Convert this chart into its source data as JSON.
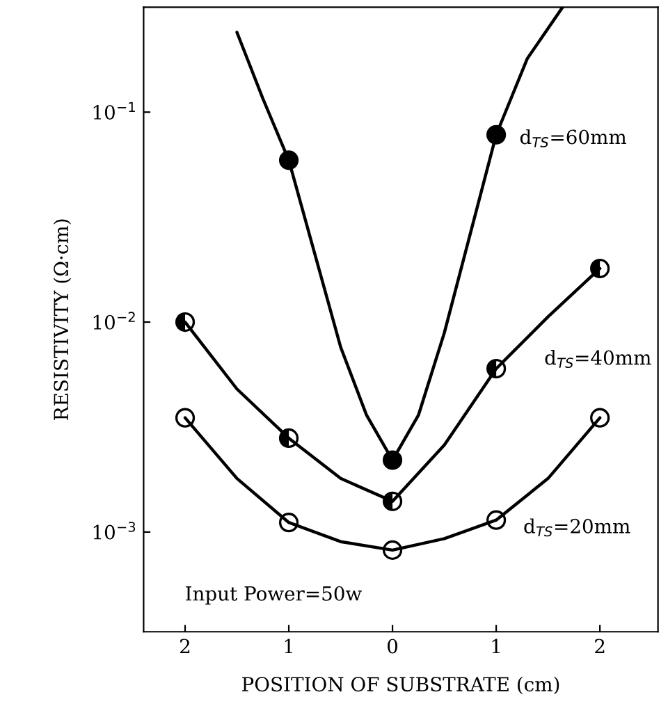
{
  "chart_data": {
    "type": "line",
    "xlabel": "POSITION OF SUBSTRATE (cm)",
    "ylabel": "RESISTIVITY (Ω·cm)",
    "log": "y",
    "grid": false,
    "legend": false,
    "xlim": [
      -2.4,
      2.56
    ],
    "ylim": [
      0.000335,
      0.316
    ],
    "xticks": [
      {
        "value": -2,
        "label": "2"
      },
      {
        "value": -1,
        "label": "1"
      },
      0,
      1,
      2
    ],
    "yticks": [
      {
        "value": 0.001,
        "label": "10$^{−3}$"
      },
      {
        "value": 0.01,
        "label": "10$^{−2}$"
      },
      {
        "value": 0.1,
        "label": "10$^{−1}$"
      }
    ],
    "series": [
      {
        "name": "d$_{TS}$=60mm",
        "marker": "none",
        "color": "#000000",
        "x": [
          -1.5,
          -1.25,
          -1,
          -0.5,
          -0.25,
          0,
          0.25,
          0.5,
          1,
          1.3,
          1.64
        ],
        "values": [
          0.24,
          0.116,
          0.059,
          0.0076,
          0.0036,
          0.0022,
          0.0036,
          0.0089,
          0.078,
          0.18,
          0.316
        ]
      },
      {
        "name": "d$_{TS}$=40mm",
        "marker": "none",
        "color": "#000000",
        "x": [
          -2,
          -1.5,
          -1,
          -0.5,
          0,
          0.5,
          1,
          1.5,
          2
        ],
        "values": [
          0.01,
          0.0048,
          0.0028,
          0.0018,
          0.0014,
          0.0026,
          0.006,
          0.0106,
          0.018
        ]
      },
      {
        "name": "d$_{TS}$=20mm",
        "marker": "none",
        "color": "#000000",
        "x": [
          -2,
          -1.5,
          -1,
          -0.5,
          0,
          0.5,
          1,
          1.5,
          2
        ],
        "values": [
          0.0035,
          0.0018,
          0.00111,
          0.0009,
          0.00082,
          0.00093,
          0.00114,
          0.0018,
          0.0035
        ]
      },
      {
        "type": "scatter",
        "marker": "circle",
        "color": "#000000",
        "x": [
          -1,
          0,
          1
        ],
        "values": [
          0.059,
          0.0022,
          0.078
        ]
      },
      {
        "type": "scatter",
        "marker": "circle",
        "color": "#000000",
        "x": [
          -2,
          -1,
          0,
          1,
          2
        ],
        "values": [
          0.01,
          0.0028,
          0.0014,
          0.006,
          0.018
        ]
      },
      {
        "type": "scatter",
        "marker": "circle",
        "color": "#000000",
        "x": [
          -2,
          -1,
          0,
          1,
          2
        ],
        "values": [
          0.0035,
          0.00111,
          0.00082,
          0.00114,
          0.0035
        ]
      }
    ],
    "annotations": [
      "Input Power=50w"
    ]
  }
}
